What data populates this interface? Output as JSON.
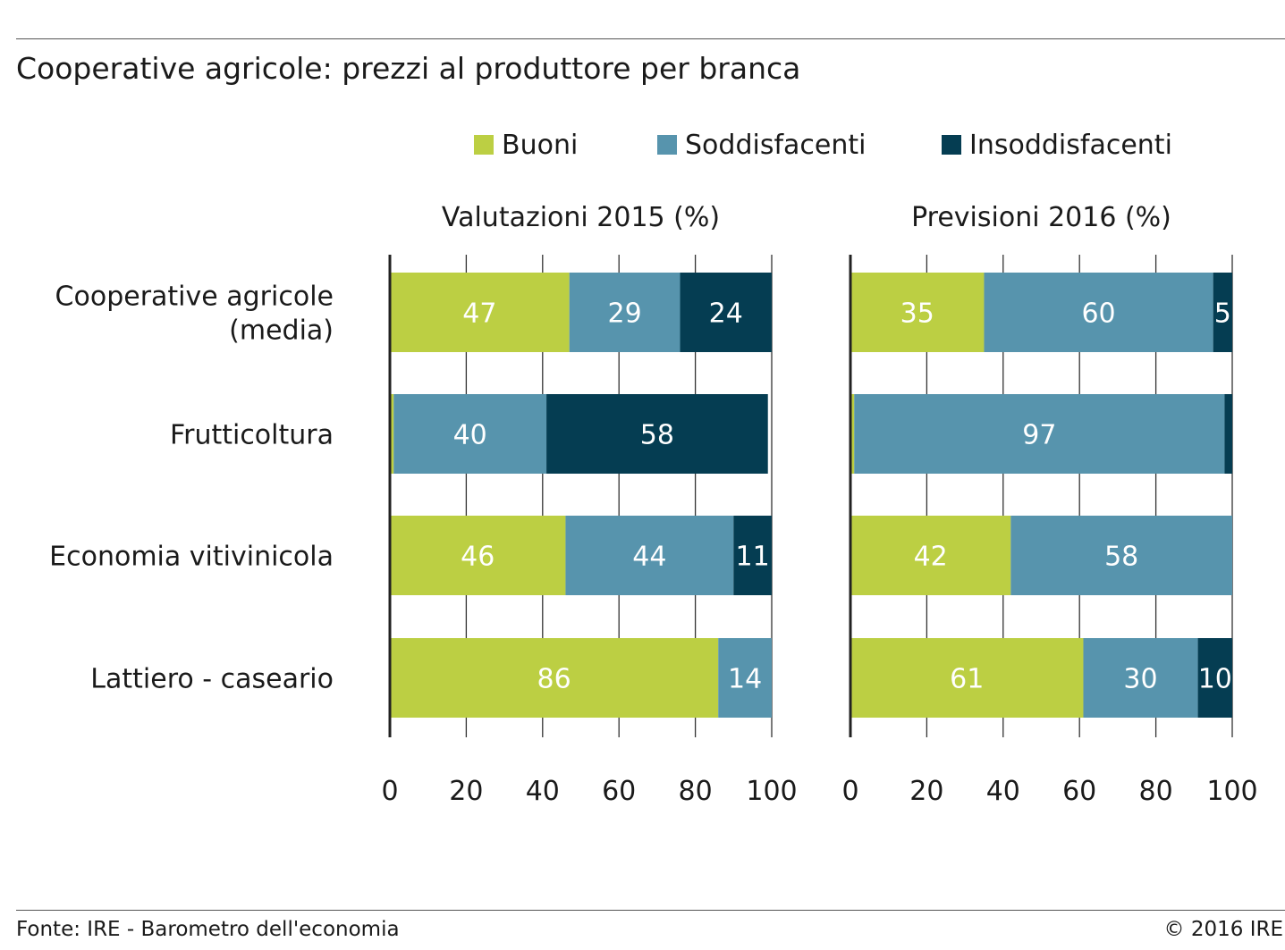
{
  "title": "Cooperative agricole: prezzi al produttore per branca",
  "footer": {
    "source": "Fonte: IRE - Barometro dell'economia",
    "copyright": "© 2016 IRE"
  },
  "colors": {
    "Buoni": "#bccf43",
    "Soddisfacenti": "#5794ad",
    "Insoddisfacenti": "#053d52",
    "axis": "#222222"
  },
  "chart_data": {
    "type": "bar",
    "orientation": "horizontal-stacked",
    "legend": [
      "Buoni",
      "Soddisfacenti",
      "Insoddisfacenti"
    ],
    "categories": [
      "Cooperative agricole\n(media)",
      "Frutticoltura",
      "Economia vitivinicola",
      "Lattiero - caseario"
    ],
    "xlim": [
      0,
      100
    ],
    "xticks": [
      0,
      20,
      40,
      60,
      80,
      100
    ],
    "panels": [
      {
        "title": "Valutazioni 2015 (%)",
        "series": [
          {
            "name": "Buoni",
            "values": [
              47,
              1,
              46,
              86
            ],
            "labels": [
              "47",
              "",
              "46",
              "86"
            ]
          },
          {
            "name": "Soddisfacenti",
            "values": [
              29,
              40,
              44,
              14
            ],
            "labels": [
              "29",
              "40",
              "44",
              "14"
            ]
          },
          {
            "name": "Insoddisfacenti",
            "values": [
              24,
              58,
              11,
              0
            ],
            "labels": [
              "24",
              "58",
              "11",
              ""
            ]
          }
        ]
      },
      {
        "title": "Previsioni 2016 (%)",
        "series": [
          {
            "name": "Buoni",
            "values": [
              35,
              1,
              42,
              61
            ],
            "labels": [
              "35",
              "",
              "42",
              "61"
            ]
          },
          {
            "name": "Soddisfacenti",
            "values": [
              60,
              97,
              58,
              30
            ],
            "labels": [
              "60",
              "97",
              "58",
              "30"
            ]
          },
          {
            "name": "Insoddisfacenti",
            "values": [
              5,
              2,
              0,
              10
            ],
            "labels": [
              "5",
              "",
              "",
              "10"
            ]
          }
        ]
      }
    ]
  }
}
